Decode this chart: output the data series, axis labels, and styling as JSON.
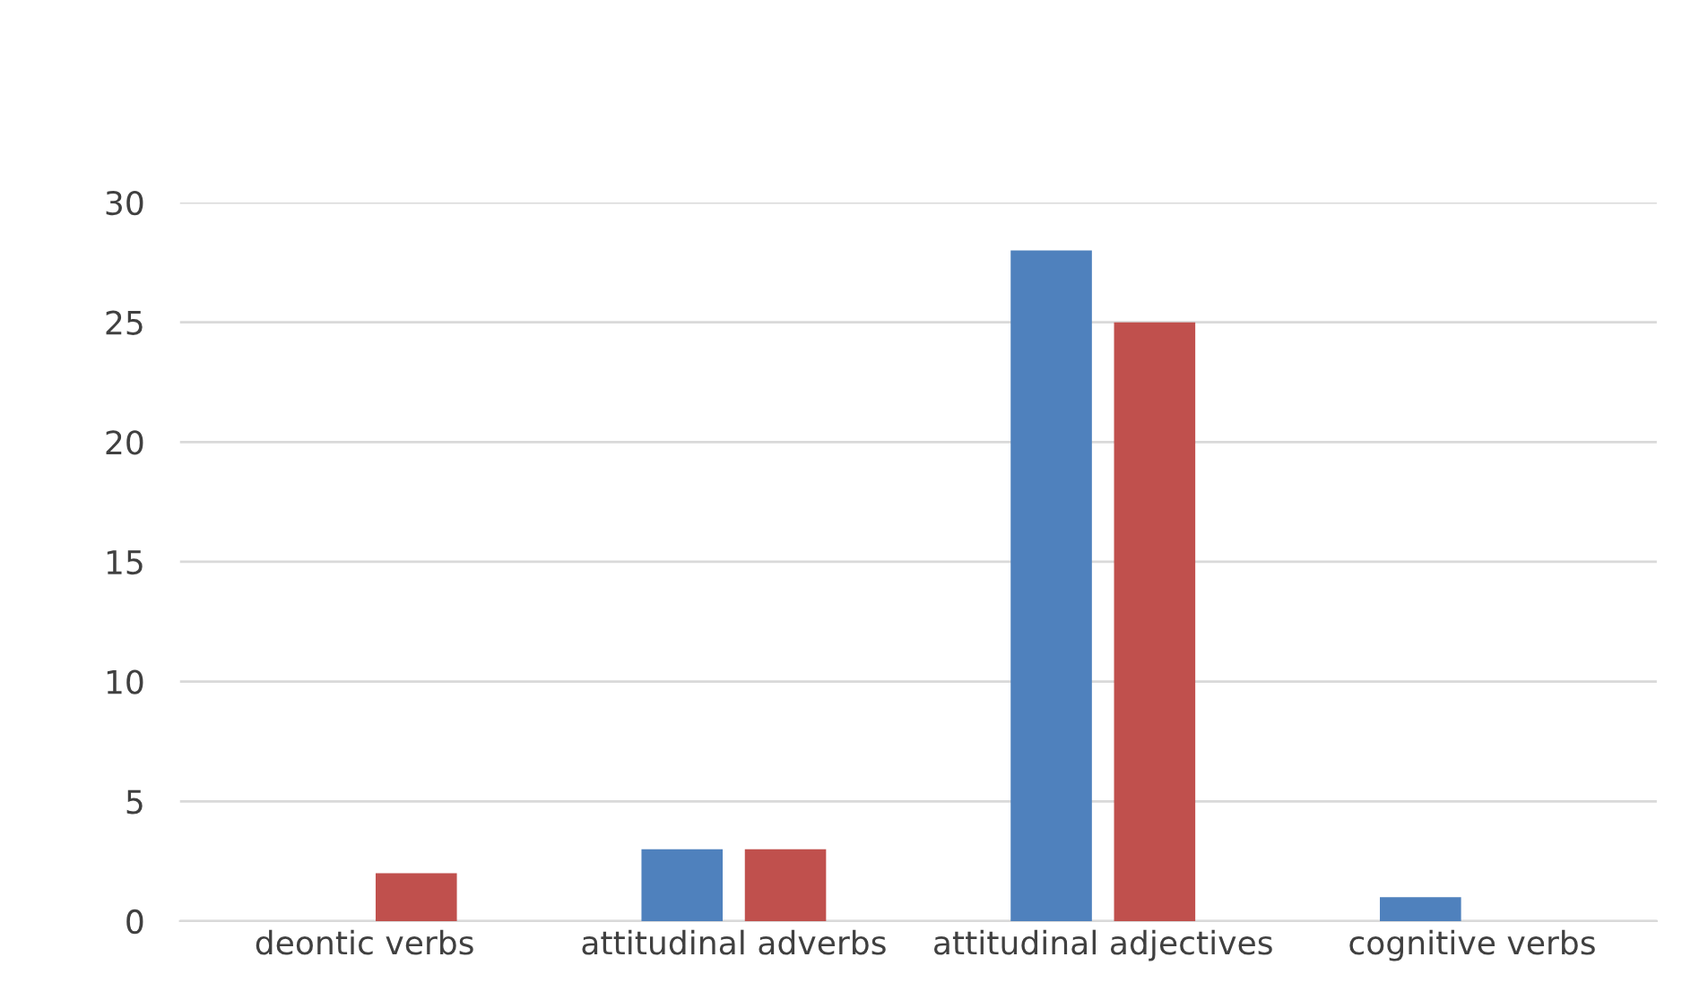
{
  "chart_data": {
    "type": "bar",
    "categories": [
      "deontic verbs",
      "attitudinal adverbs",
      "attitudinal adjectives",
      "cognitive verbs"
    ],
    "series": [
      {
        "color": "#4f81bd",
        "values": [
          0,
          3,
          28,
          1
        ]
      },
      {
        "color": "#c0504d",
        "values": [
          2,
          3,
          25,
          0
        ]
      }
    ],
    "ylim": [
      0,
      30
    ],
    "yticks": [
      0,
      5,
      10,
      15,
      20,
      25,
      30
    ],
    "grid": "y",
    "legend": false
  }
}
